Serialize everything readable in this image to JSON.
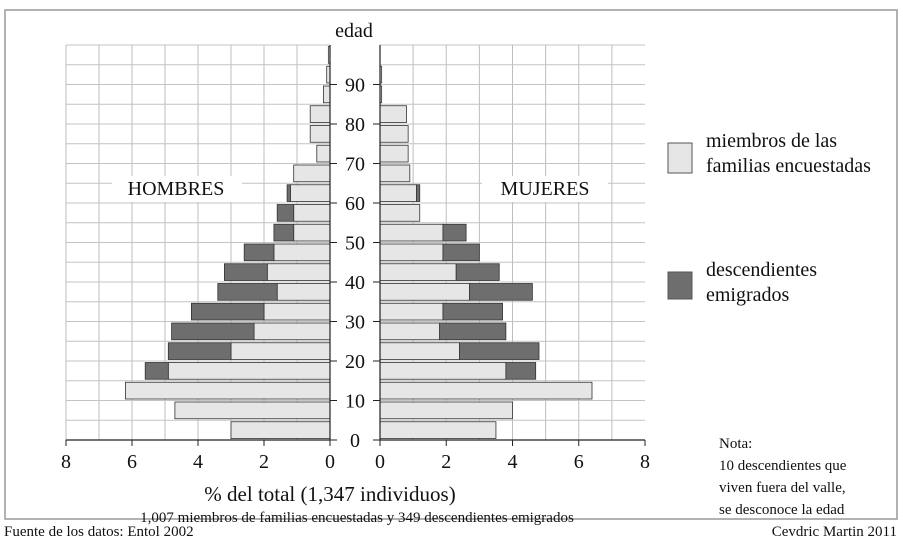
{
  "chart_data": {
    "type": "bar",
    "subtype": "population-pyramid",
    "y_axis_title": "edad",
    "x_axis_title": "% del total (1,347 individuos)",
    "subtitle": "1,007 miembros de familias encuestadas y 349 descendientes emigrados",
    "side_labels": {
      "left": "HOMBRES",
      "right": "MUJERES"
    },
    "age_ticks": [
      0,
      10,
      20,
      30,
      40,
      50,
      60,
      70,
      80,
      90
    ],
    "x_ticks_left": [
      "8",
      "6",
      "4",
      "2",
      "0"
    ],
    "x_ticks_right": [
      "0",
      "2",
      "4",
      "6",
      "8"
    ],
    "xlim": [
      0,
      8
    ],
    "age_groups": [
      "0-4",
      "5-9",
      "10-14",
      "15-19",
      "20-24",
      "25-29",
      "30-34",
      "35-39",
      "40-44",
      "45-49",
      "50-54",
      "55-59",
      "60-64",
      "65-69",
      "70-74",
      "75-79",
      "80-84",
      "85-89",
      "90-94",
      "95-99"
    ],
    "series": [
      {
        "name": "miembros de las familias encuestadas",
        "color": "#e6e6e6",
        "men": [
          3.0,
          4.7,
          6.2,
          4.9,
          3.0,
          2.3,
          2.0,
          1.6,
          1.9,
          1.7,
          1.1,
          1.1,
          1.2,
          1.1,
          0.4,
          0.6,
          0.6,
          0.2,
          0.1,
          0.05
        ],
        "women": [
          3.5,
          4.0,
          6.4,
          3.8,
          2.4,
          1.8,
          1.9,
          2.7,
          2.3,
          1.9,
          1.9,
          1.2,
          1.1,
          0.9,
          0.85,
          0.85,
          0.8,
          0.05,
          0.05,
          0.0
        ]
      },
      {
        "name": "descendientes emigrados",
        "color": "#6e6e6e",
        "men": [
          0,
          0,
          0,
          0.7,
          1.9,
          2.5,
          2.2,
          1.8,
          1.3,
          0.9,
          0.6,
          0.5,
          0.1,
          0,
          0,
          0,
          0,
          0,
          0,
          0
        ],
        "women": [
          0,
          0,
          0,
          0.9,
          2.4,
          2.0,
          1.8,
          1.9,
          1.3,
          1.1,
          0.7,
          0,
          0.1,
          0,
          0,
          0,
          0,
          0,
          0,
          0
        ]
      }
    ]
  },
  "note": {
    "line1": "Nota:",
    "line2": "10 descendientes que",
    "line3": "viven fuera del valle,",
    "line4": "se desconoce la edad"
  },
  "source_text": "Fuente de los datos: Entol 2002",
  "author_text": "Cevdric Martin 2011"
}
